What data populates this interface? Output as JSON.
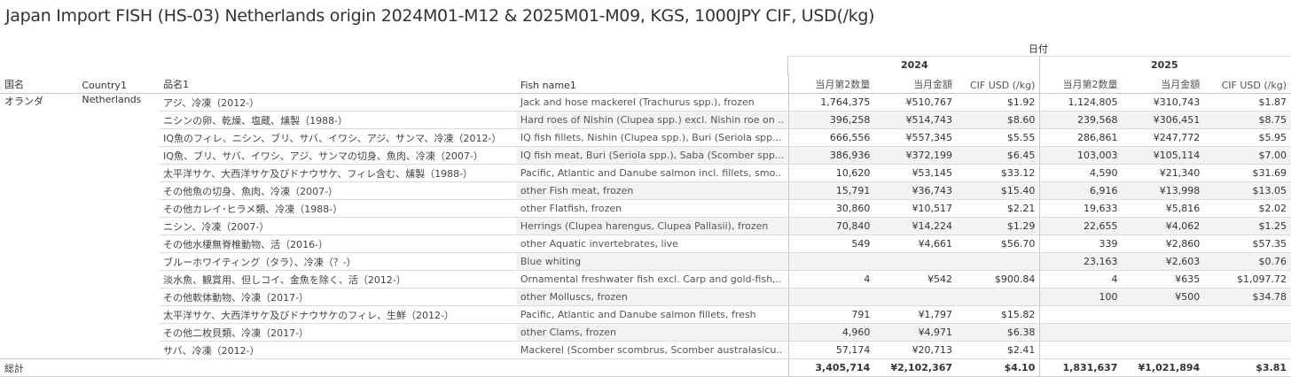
{
  "title": "Japan Import FISH (HS-03) Netherlands origin 2024M01-M12 & 2025M01-M09, KGS, 1000JPY CIF, USD(/kg)",
  "date_header": "日付",
  "years": [
    "2024",
    "2025"
  ],
  "columns": {
    "country_jp": "国名",
    "country": "Country1",
    "item_jp": "品名1",
    "fish_name": "Fish name1",
    "qty": "当月第2数量",
    "amount": "当月金額",
    "cif": "CIF USD (/kg)"
  },
  "country_jp": "オランダ",
  "country": "Netherlands",
  "rows": [
    {
      "jp": "アジ、冷凍（2012-）",
      "en": "Jack and hose mackerel (Trachurus spp.), frozen",
      "v": [
        "1,764,375",
        "¥510,767",
        "$1.92",
        "1,124,805",
        "¥310,743",
        "$1.87"
      ]
    },
    {
      "jp": "ニシンの卵、乾燥、塩蔵、燻製（1988-）",
      "en": "Hard roes of Nishin (Clupea spp.) excl. Nishin roe on ..",
      "v": [
        "396,258",
        "¥514,743",
        "$8.60",
        "239,568",
        "¥306,451",
        "$8.75"
      ]
    },
    {
      "jp": "IQ魚のフィレ、ニシン、ブリ、サバ、イワシ、アジ、サンマ、冷凍（2012-）",
      "en": "IQ fish fillets, Nishin (Clupea spp.), Buri (Seriola spp...",
      "v": [
        "666,556",
        "¥557,345",
        "$5.55",
        "286,861",
        "¥247,772",
        "$5.95"
      ]
    },
    {
      "jp": "IQ魚、ブリ、サバ、イワシ、アジ、サンマの切身、魚肉、冷凍（2007-）",
      "en": "IQ fish meat,  Buri (Seriola spp.), Saba (Scomber spp...",
      "v": [
        "386,936",
        "¥372,199",
        "$6.45",
        "103,003",
        "¥105,114",
        "$7.00"
      ]
    },
    {
      "jp": "太平洋サケ、大西洋サケ及びドナウサケ、フィレ含む、燻製（1988-）",
      "en": "Pacific, Atlantic and Danube salmon incl. fillets, smo..",
      "v": [
        "10,620",
        "¥53,145",
        "$33.12",
        "4,590",
        "¥21,340",
        "$31.69"
      ]
    },
    {
      "jp": "その他魚の切身、魚肉、冷凍（2007-）",
      "en": "other Fish meat, frozen",
      "v": [
        "15,791",
        "¥36,743",
        "$15.40",
        "6,916",
        "¥13,998",
        "$13.05"
      ]
    },
    {
      "jp": "その他カレイ･ヒラメ類、冷凍（1988-）",
      "en": "other Flatfish, frozen",
      "v": [
        "30,860",
        "¥10,517",
        "$2.21",
        "19,633",
        "¥5,816",
        "$2.02"
      ]
    },
    {
      "jp": "ニシン、冷凍（2007-）",
      "en": "Herrings (Clupea harengus, Clupea Pallasii), frozen",
      "v": [
        "70,840",
        "¥14,224",
        "$1.29",
        "22,655",
        "¥4,062",
        "$1.25"
      ]
    },
    {
      "jp": "その他水棲無脊椎動物、活（2016-）",
      "en": "other Aquatic invertebrates, live",
      "v": [
        "549",
        "¥4,661",
        "$56.70",
        "339",
        "¥2,860",
        "$57.35"
      ]
    },
    {
      "jp": "ブルーホワイティング（タラ）、冷凍（？-）",
      "en": "Blue whiting",
      "v": [
        "",
        "",
        "",
        "23,163",
        "¥2,603",
        "$0.76"
      ]
    },
    {
      "jp": "淡水魚、観賞用、但しコイ、金魚を除く、活（2012-）",
      "en": "Ornamental freshwater fish excl. Carp and gold-fish,..",
      "v": [
        "4",
        "¥542",
        "$900.84",
        "4",
        "¥635",
        "$1,097.72"
      ]
    },
    {
      "jp": "その他軟体動物、冷凍（2017-）",
      "en": "other Molluscs, frozen",
      "v": [
        "",
        "",
        "",
        "100",
        "¥500",
        "$34.78"
      ]
    },
    {
      "jp": "太平洋サケ、大西洋サケ及びドナウサケのフィレ、生鮮（2012-）",
      "en": "Pacific, Atlantic and Danube salmon fillets, fresh",
      "v": [
        "791",
        "¥1,797",
        "$15.82",
        "",
        "",
        ""
      ]
    },
    {
      "jp": "その他二枚貝類、冷凍（2017-）",
      "en": "other Clams, frozen",
      "v": [
        "4,960",
        "¥4,971",
        "$6.38",
        "",
        "",
        ""
      ]
    },
    {
      "jp": "サバ、冷凍（2012-）",
      "en": "Mackerel (Scomber scombrus, Scomber australasicu..",
      "v": [
        "57,174",
        "¥20,713",
        "$2.41",
        "",
        "",
        ""
      ]
    }
  ],
  "total": {
    "label": "総計",
    "v": [
      "3,405,714",
      "¥2,102,367",
      "$4.10",
      "1,831,637",
      "¥1,021,894",
      "$3.81"
    ]
  }
}
